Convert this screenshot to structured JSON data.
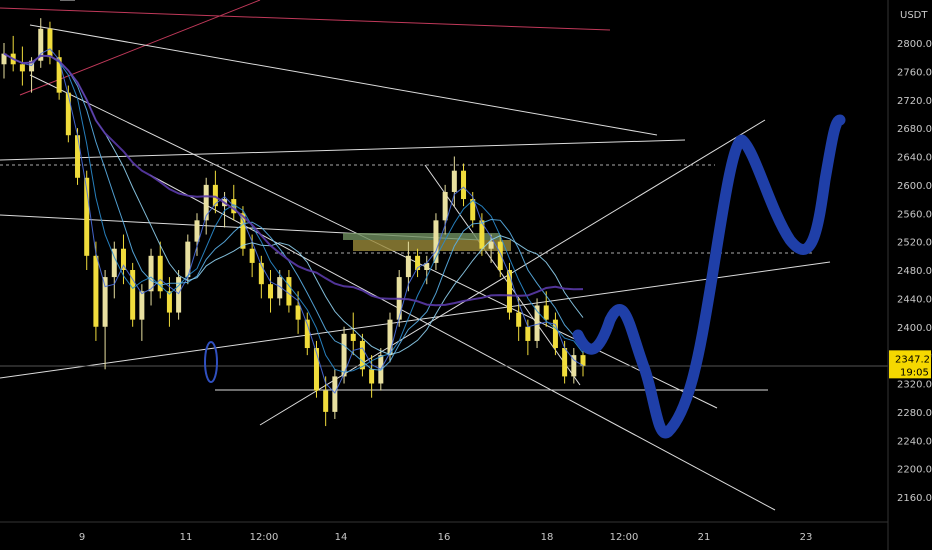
{
  "chart_data": {
    "type": "candlestick",
    "currency_label": "USDT",
    "y_ticks": [
      2800,
      2760,
      2720,
      2680,
      2640,
      2600,
      2560,
      2520,
      2480,
      2440,
      2400,
      2360,
      2320,
      2280,
      2240,
      2200,
      2160
    ],
    "x_ticks": [
      "9",
      "11",
      "12:00",
      "14",
      "16",
      "18",
      "12:00",
      "21",
      "23"
    ],
    "ylim": [
      2120,
      2840
    ],
    "last_price": "2347.27",
    "countdown": "19:05",
    "grid": false,
    "candles": [
      {
        "o": 2770,
        "h": 2800,
        "l": 2750,
        "c": 2785
      },
      {
        "o": 2785,
        "h": 2810,
        "l": 2760,
        "c": 2770
      },
      {
        "o": 2770,
        "h": 2795,
        "l": 2740,
        "c": 2760
      },
      {
        "o": 2760,
        "h": 2780,
        "l": 2730,
        "c": 2775
      },
      {
        "o": 2775,
        "h": 2835,
        "l": 2765,
        "c": 2820
      },
      {
        "o": 2820,
        "h": 2830,
        "l": 2770,
        "c": 2780
      },
      {
        "o": 2780,
        "h": 2790,
        "l": 2720,
        "c": 2730
      },
      {
        "o": 2730,
        "h": 2740,
        "l": 2660,
        "c": 2670
      },
      {
        "o": 2670,
        "h": 2680,
        "l": 2600,
        "c": 2610
      },
      {
        "o": 2610,
        "h": 2620,
        "l": 2480,
        "c": 2500
      },
      {
        "o": 2500,
        "h": 2520,
        "l": 2380,
        "c": 2400
      },
      {
        "o": 2400,
        "h": 2480,
        "l": 2340,
        "c": 2470
      },
      {
        "o": 2470,
        "h": 2520,
        "l": 2440,
        "c": 2510
      },
      {
        "o": 2510,
        "h": 2530,
        "l": 2460,
        "c": 2480
      },
      {
        "o": 2480,
        "h": 2490,
        "l": 2400,
        "c": 2410
      },
      {
        "o": 2410,
        "h": 2460,
        "l": 2380,
        "c": 2450
      },
      {
        "o": 2450,
        "h": 2510,
        "l": 2430,
        "c": 2500
      },
      {
        "o": 2500,
        "h": 2520,
        "l": 2440,
        "c": 2450
      },
      {
        "o": 2450,
        "h": 2470,
        "l": 2400,
        "c": 2420
      },
      {
        "o": 2420,
        "h": 2480,
        "l": 2410,
        "c": 2470
      },
      {
        "o": 2470,
        "h": 2530,
        "l": 2460,
        "c": 2520
      },
      {
        "o": 2520,
        "h": 2560,
        "l": 2500,
        "c": 2550
      },
      {
        "o": 2550,
        "h": 2610,
        "l": 2530,
        "c": 2600
      },
      {
        "o": 2600,
        "h": 2620,
        "l": 2560,
        "c": 2570
      },
      {
        "o": 2570,
        "h": 2590,
        "l": 2540,
        "c": 2580
      },
      {
        "o": 2580,
        "h": 2600,
        "l": 2550,
        "c": 2560
      },
      {
        "o": 2560,
        "h": 2570,
        "l": 2500,
        "c": 2510
      },
      {
        "o": 2510,
        "h": 2530,
        "l": 2470,
        "c": 2490
      },
      {
        "o": 2490,
        "h": 2500,
        "l": 2440,
        "c": 2460
      },
      {
        "o": 2460,
        "h": 2480,
        "l": 2420,
        "c": 2440
      },
      {
        "o": 2440,
        "h": 2480,
        "l": 2430,
        "c": 2470
      },
      {
        "o": 2470,
        "h": 2480,
        "l": 2420,
        "c": 2430
      },
      {
        "o": 2430,
        "h": 2450,
        "l": 2390,
        "c": 2410
      },
      {
        "o": 2410,
        "h": 2420,
        "l": 2360,
        "c": 2370
      },
      {
        "o": 2370,
        "h": 2380,
        "l": 2300,
        "c": 2310
      },
      {
        "o": 2310,
        "h": 2330,
        "l": 2260,
        "c": 2280
      },
      {
        "o": 2280,
        "h": 2340,
        "l": 2270,
        "c": 2330
      },
      {
        "o": 2330,
        "h": 2400,
        "l": 2320,
        "c": 2390
      },
      {
        "o": 2390,
        "h": 2420,
        "l": 2360,
        "c": 2380
      },
      {
        "o": 2380,
        "h": 2390,
        "l": 2330,
        "c": 2340
      },
      {
        "o": 2340,
        "h": 2360,
        "l": 2300,
        "c": 2320
      },
      {
        "o": 2320,
        "h": 2370,
        "l": 2310,
        "c": 2360
      },
      {
        "o": 2360,
        "h": 2420,
        "l": 2350,
        "c": 2410
      },
      {
        "o": 2410,
        "h": 2480,
        "l": 2400,
        "c": 2470
      },
      {
        "o": 2470,
        "h": 2520,
        "l": 2450,
        "c": 2500
      },
      {
        "o": 2500,
        "h": 2510,
        "l": 2470,
        "c": 2480
      },
      {
        "o": 2480,
        "h": 2500,
        "l": 2460,
        "c": 2490
      },
      {
        "o": 2490,
        "h": 2560,
        "l": 2480,
        "c": 2550
      },
      {
        "o": 2550,
        "h": 2600,
        "l": 2530,
        "c": 2590
      },
      {
        "o": 2590,
        "h": 2640,
        "l": 2570,
        "c": 2620
      },
      {
        "o": 2620,
        "h": 2630,
        "l": 2570,
        "c": 2580
      },
      {
        "o": 2580,
        "h": 2590,
        "l": 2540,
        "c": 2550
      },
      {
        "o": 2550,
        "h": 2560,
        "l": 2500,
        "c": 2510
      },
      {
        "o": 2510,
        "h": 2530,
        "l": 2490,
        "c": 2520
      },
      {
        "o": 2520,
        "h": 2530,
        "l": 2470,
        "c": 2480
      },
      {
        "o": 2480,
        "h": 2490,
        "l": 2410,
        "c": 2420
      },
      {
        "o": 2420,
        "h": 2440,
        "l": 2380,
        "c": 2400
      },
      {
        "o": 2400,
        "h": 2410,
        "l": 2360,
        "c": 2380
      },
      {
        "o": 2380,
        "h": 2440,
        "l": 2370,
        "c": 2430
      },
      {
        "o": 2430,
        "h": 2450,
        "l": 2400,
        "c": 2410
      },
      {
        "o": 2410,
        "h": 2420,
        "l": 2360,
        "c": 2370
      },
      {
        "o": 2370,
        "h": 2380,
        "l": 2320,
        "c": 2330
      },
      {
        "o": 2330,
        "h": 2370,
        "l": 2320,
        "c": 2360
      },
      {
        "o": 2360,
        "h": 2370,
        "l": 2330,
        "c": 2345
      }
    ],
    "projection_color": "#1f3fa8",
    "ma_colors": [
      "#4a6fe0",
      "#2a8ccf",
      "#5ab0e8",
      "#8fd0f0",
      "#5a3aa8"
    ]
  }
}
